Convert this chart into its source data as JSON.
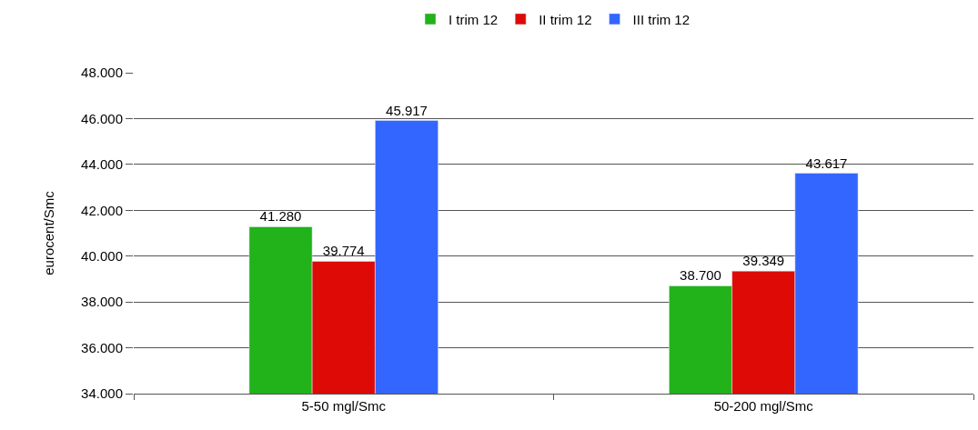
{
  "chart_data": {
    "type": "bar",
    "ylabel": "eurocent/Smc",
    "categories": [
      "5-50 mgl/Smc",
      "50-200 mgl/Smc"
    ],
    "series": [
      {
        "name": "I trim 12",
        "color": "#22b21a",
        "values": [
          41.28,
          38.7
        ],
        "value_labels": [
          "41.280",
          "38.700"
        ]
      },
      {
        "name": "II trim 12",
        "color": "#dd0a05",
        "values": [
          39.774,
          39.349
        ],
        "value_labels": [
          "39.774",
          "39.349"
        ]
      },
      {
        "name": "III trim 12",
        "color": "#3366ff",
        "values": [
          45.917,
          43.617
        ],
        "value_labels": [
          "45.917",
          "43.617"
        ]
      }
    ],
    "ylim": [
      34,
      48
    ],
    "yticks": [
      {
        "value": 34,
        "label": "34.000"
      },
      {
        "value": 36,
        "label": "36.000"
      },
      {
        "value": 38,
        "label": "38.000"
      },
      {
        "value": 40,
        "label": "40.000"
      },
      {
        "value": 42,
        "label": "42.000"
      },
      {
        "value": 44,
        "label": "44.000"
      },
      {
        "value": 46,
        "label": "46.000"
      },
      {
        "value": 48,
        "label": "48.000"
      }
    ],
    "grid": "y",
    "legend": "top"
  }
}
